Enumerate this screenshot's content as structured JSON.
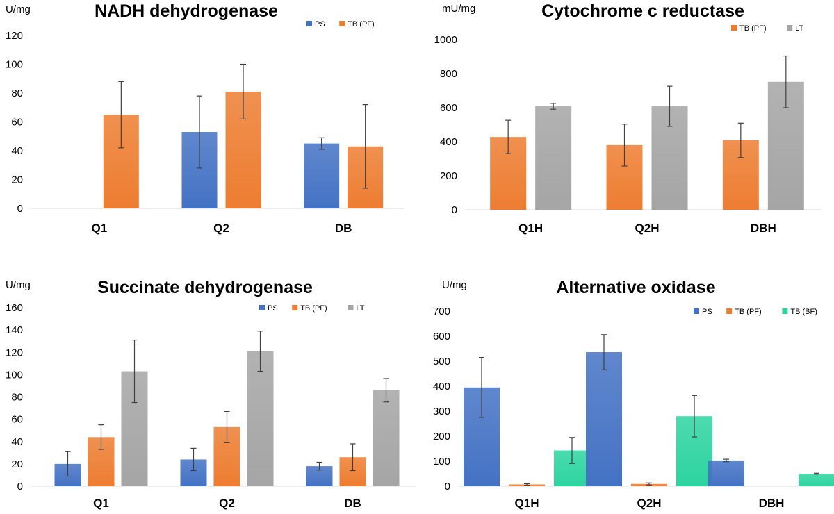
{
  "colors": {
    "PS": "#4472C4",
    "TB (PF)": "#ED7D31",
    "LT": "#A5A5A5",
    "TB (BF)": "#2DD4A0"
  },
  "chart_data": [
    {
      "type": "bar",
      "title": "NADH dehydrogenase",
      "ylabel": "U/mg",
      "ylim": [
        0,
        120
      ],
      "yticks": [
        0,
        20,
        40,
        60,
        80,
        100,
        120
      ],
      "categories": [
        "Q1",
        "Q2",
        "DB"
      ],
      "series": [
        {
          "name": "PS",
          "values": [
            null,
            53,
            45
          ],
          "errors": [
            null,
            25,
            4
          ]
        },
        {
          "name": "TB (PF)",
          "values": [
            65,
            81,
            43
          ],
          "errors": [
            23,
            19,
            29
          ]
        }
      ],
      "legend": "top-right"
    },
    {
      "type": "bar",
      "title": "Cytochrome c reductase",
      "ylabel": "mU/mg",
      "ylim": [
        0,
        1000
      ],
      "yticks": [
        0,
        200,
        400,
        600,
        800,
        1000
      ],
      "categories": [
        "Q1H",
        "Q2H",
        "DBH"
      ],
      "series": [
        {
          "name": "TB (PF)",
          "values": [
            428,
            380,
            408
          ],
          "errors": [
            98,
            123,
            101
          ]
        },
        {
          "name": "LT",
          "values": [
            608,
            608,
            752
          ],
          "errors": [
            17,
            118,
            152
          ]
        }
      ],
      "legend": "top-right"
    },
    {
      "type": "bar",
      "title": "Succinate dehydrogenase",
      "ylabel": "U/mg",
      "ylim": [
        0,
        160
      ],
      "yticks": [
        0,
        20,
        40,
        60,
        80,
        100,
        120,
        140,
        160
      ],
      "categories": [
        "Q1",
        "Q2",
        "DB"
      ],
      "series": [
        {
          "name": "PS",
          "values": [
            20,
            24,
            18
          ],
          "errors": [
            11,
            10,
            3.5
          ]
        },
        {
          "name": "TB (PF)",
          "values": [
            44,
            53,
            26
          ],
          "errors": [
            11,
            14,
            12
          ]
        },
        {
          "name": "LT",
          "values": [
            103,
            121,
            86
          ],
          "errors": [
            28,
            18,
            10.5
          ]
        }
      ],
      "legend": "top-right"
    },
    {
      "type": "bar",
      "title": "Alternative oxidase",
      "ylabel": "U/mg",
      "ylim": [
        0,
        700
      ],
      "yticks": [
        0,
        100,
        200,
        300,
        400,
        500,
        600,
        700
      ],
      "categories": [
        "Q1H",
        "Q2H",
        "DBH"
      ],
      "series": [
        {
          "name": "PS",
          "values": [
            395,
            536,
            103
          ],
          "errors": [
            120,
            70,
            5
          ]
        },
        {
          "name": "TB (PF)",
          "values": [
            7,
            9,
            null
          ],
          "errors": [
            3,
            4,
            null
          ]
        },
        {
          "name": "TB (BF)",
          "values": [
            143,
            280,
            50
          ],
          "errors": [
            52,
            83,
            2
          ]
        }
      ],
      "legend": "top-right"
    }
  ]
}
